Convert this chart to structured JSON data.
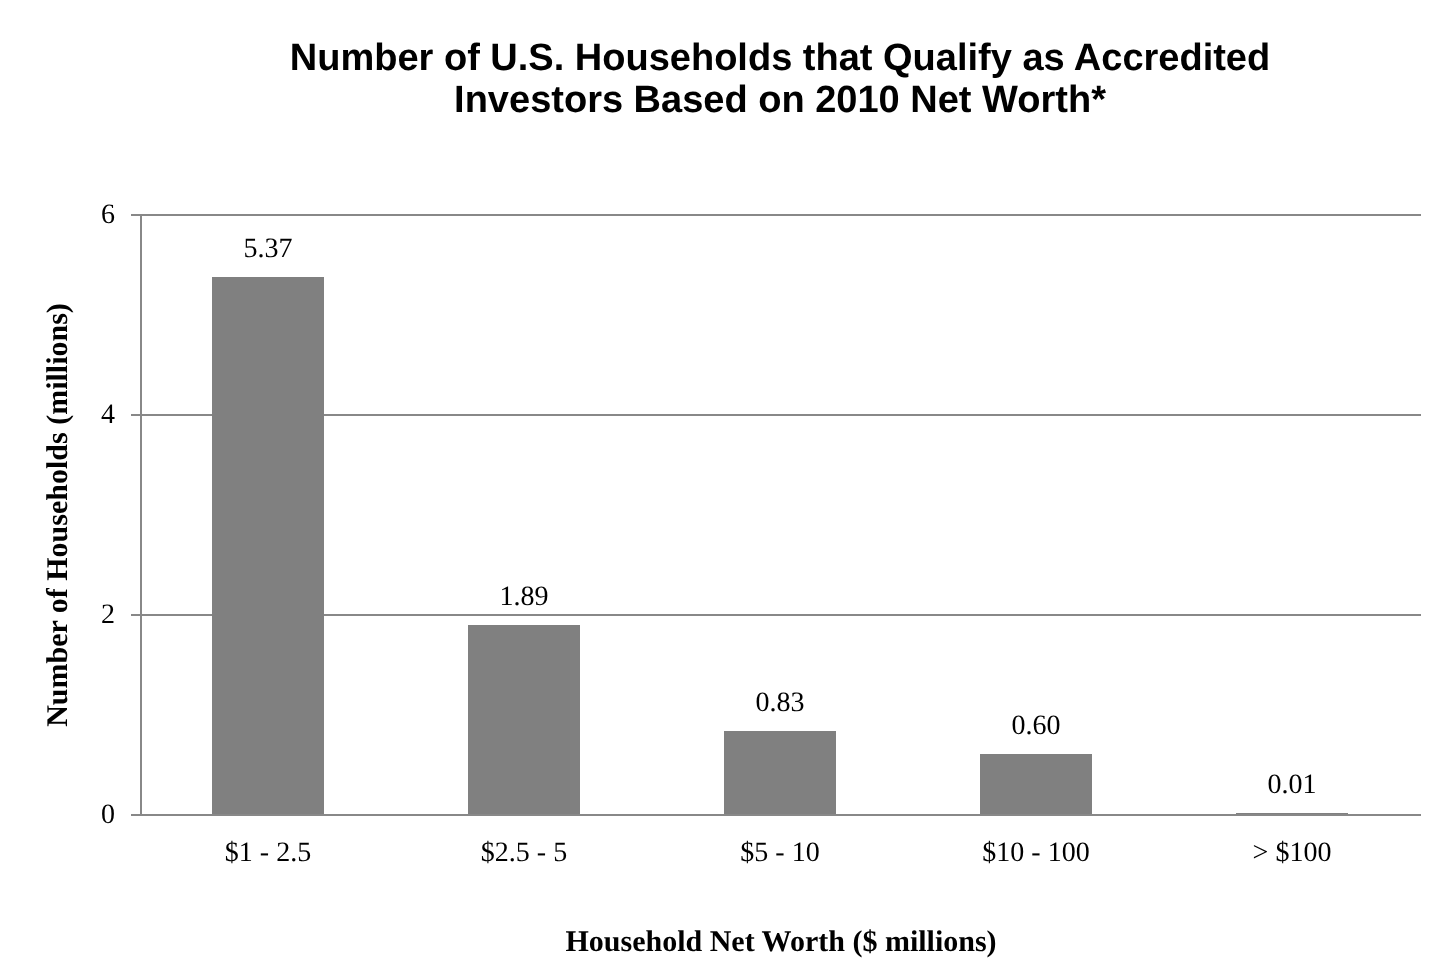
{
  "chart_data": {
    "type": "bar",
    "title": "Number of U.S. Households that Qualify as Accredited\nInvestors Based on 2010 Net Worth*",
    "xlabel": "Household Net Worth ($ millions)",
    "ylabel": "Number of Households (millions)",
    "categories": [
      "$1 - 2.5",
      "$2.5 - 5",
      "$5 - 10",
      "$10 - 100",
      "> $100"
    ],
    "values": [
      5.37,
      1.89,
      0.83,
      0.6,
      0.01
    ],
    "value_labels": [
      "5.37",
      "1.89",
      "0.83",
      "0.60",
      "0.01"
    ],
    "color": "#808080",
    "ylim": [
      0,
      6
    ],
    "yticks": [
      0,
      2,
      4,
      6
    ],
    "grid": "y"
  }
}
